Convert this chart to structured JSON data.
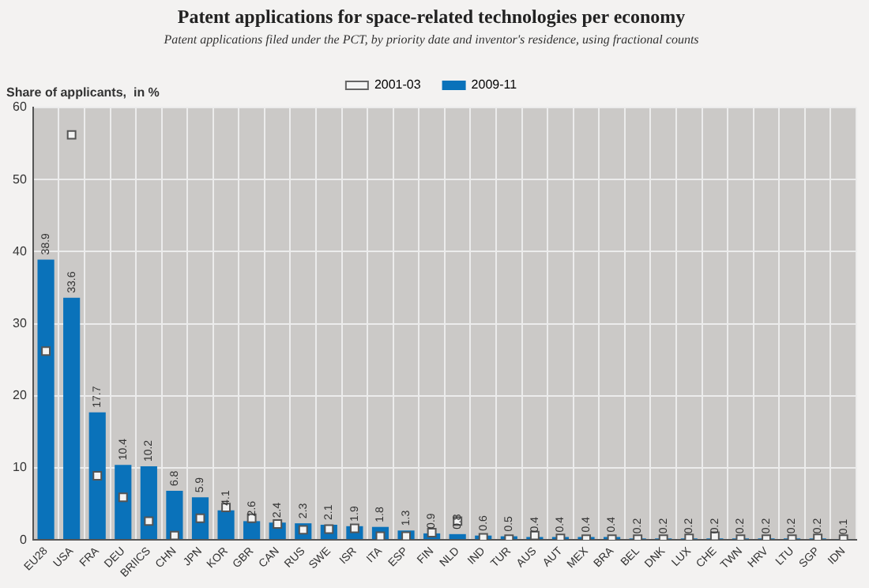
{
  "chart_data": {
    "type": "bar",
    "title": "Patent applications for space-related technologies per economy",
    "subtitle": "Patent applications filed under the PCT, by priority date and inventor's residence, using fractional counts",
    "ylabel": "Share of applicants,  in %",
    "categories": [
      "EU28",
      "USA",
      "FRA",
      "DEU",
      "BRIICS",
      "CHN",
      "JPN",
      "KOR",
      "GBR",
      "CAN",
      "RUS",
      "SWE",
      "ISR",
      "ITA",
      "ESP",
      "FIN",
      "NLD",
      "IND",
      "TUR",
      "AUS",
      "AUT",
      "MEX",
      "BRA",
      "BEL",
      "DNK",
      "LUX",
      "CHE",
      "TWN",
      "HRV",
      "LTU",
      "SGP",
      "IDN"
    ],
    "series": [
      {
        "name": "2001-03",
        "type": "scatter",
        "color": "#f4f4f4",
        "x": [
          "EU28",
          "USA",
          "FRA",
          "DEU",
          "BRIICS",
          "CHN",
          "JPN",
          "KOR",
          "GBR",
          "CAN",
          "RUS",
          "SWE",
          "ISR",
          "ITA",
          "ESP",
          "FIN",
          "NLD",
          "IND",
          "TUR",
          "AUS",
          "AUT",
          "MEX",
          "BRA",
          "BEL",
          "DNK",
          "LUX",
          "CHE",
          "TWN",
          "HRV",
          "LTU",
          "SGP",
          "IDN"
        ],
        "values": [
          26.2,
          56.2,
          8.9,
          5.9,
          2.6,
          0.6,
          3.0,
          4.5,
          3.0,
          2.2,
          1.4,
          1.5,
          1.6,
          0.5,
          0.5,
          1.0,
          2.6,
          0.3,
          0.1,
          0.6,
          0.2,
          0.1,
          0.1,
          0.1,
          0.1,
          0.2,
          0.5,
          0.1,
          0.1,
          0.1,
          0.2,
          0.1
        ]
      },
      {
        "name": "2009-11",
        "type": "bar",
        "color": "#0a72ba",
        "values": [
          38.9,
          33.6,
          17.7,
          10.4,
          10.2,
          6.8,
          5.9,
          4.1,
          2.6,
          2.4,
          2.3,
          2.1,
          1.9,
          1.8,
          1.3,
          0.9,
          0.8,
          0.6,
          0.5,
          0.4,
          0.4,
          0.4,
          0.4,
          0.2,
          0.2,
          0.2,
          0.2,
          0.2,
          0.2,
          0.2,
          0.2,
          0.1
        ],
        "data_labels": true
      }
    ],
    "ylim": [
      0,
      60
    ],
    "yticks": [
      0,
      10,
      20,
      30,
      40,
      50,
      60
    ],
    "grid": true,
    "legend": "top"
  }
}
